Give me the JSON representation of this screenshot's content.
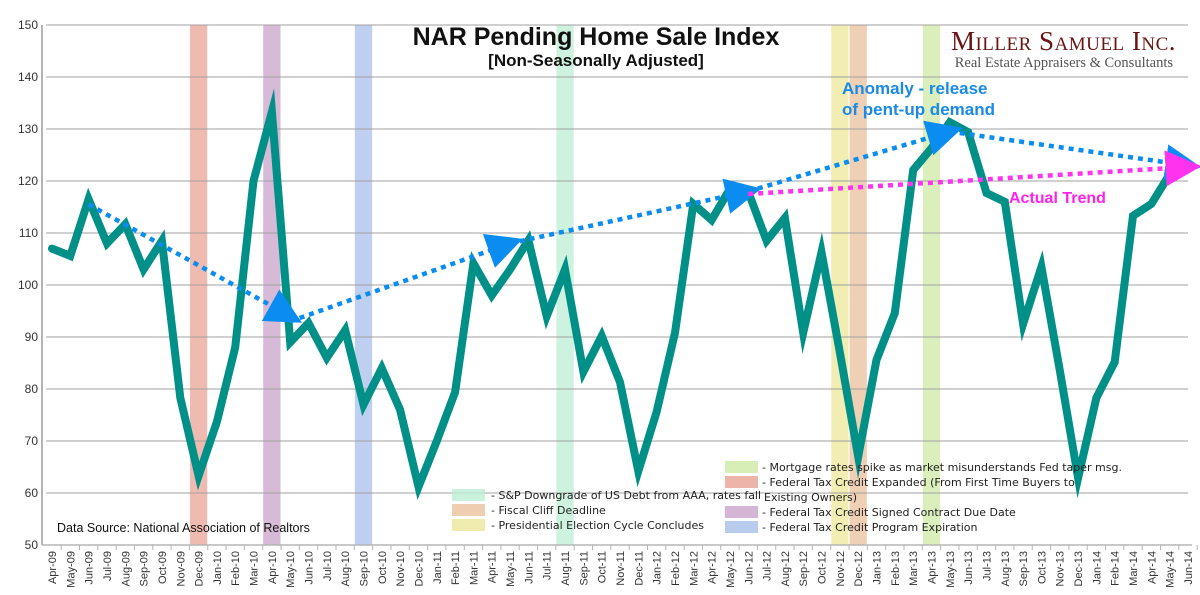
{
  "chart_data": {
    "type": "line",
    "title": "NAR Pending Home Sale Index",
    "subtitle": "[Non-Seasonally Adjusted]",
    "xlabel": "",
    "ylabel": "",
    "ylim": [
      50,
      150
    ],
    "yticks": [
      50,
      60,
      70,
      80,
      90,
      100,
      110,
      120,
      130,
      140,
      150
    ],
    "grid": true,
    "categories": [
      "Apr-09",
      "May-09",
      "Jun-09",
      "Jul-09",
      "Aug-09",
      "Sep-09",
      "Oct-09",
      "Nov-09",
      "Dec-09",
      "Jan-10",
      "Feb-10",
      "Mar-10",
      "Apr-10",
      "May-10",
      "Jun-10",
      "Jul-10",
      "Aug-10",
      "Sep-10",
      "Oct-10",
      "Nov-10",
      "Dec-10",
      "Jan-11",
      "Feb-11",
      "Mar-11",
      "Apr-11",
      "May-11",
      "Jun-11",
      "Jul-11",
      "Aug-11",
      "Sep-11",
      "Oct-11",
      "Nov-11",
      "Dec-11",
      "Jan-12",
      "Feb-12",
      "Mar-12",
      "Apr-12",
      "May-12",
      "Jun-12",
      "Jul-12",
      "Aug-12",
      "Sep-12",
      "Oct-12",
      "Nov-12",
      "Dec-12",
      "Jan-13",
      "Feb-13",
      "Mar-13",
      "Apr-13",
      "May-13",
      "Jun-13",
      "Jul-13",
      "Aug-13",
      "Sep-13",
      "Oct-13",
      "Nov-13",
      "Dec-13",
      "Jan-14",
      "Feb-14",
      "Mar-14",
      "Apr-14",
      "May-14",
      "Jun-14"
    ],
    "series": [
      {
        "name": "Pending Home Sale Index",
        "color": "#009088",
        "values": [
          107.0,
          105.6,
          116.5,
          108.0,
          111.7,
          103.0,
          108.5,
          78.3,
          63.3,
          73.7,
          88.0,
          120.0,
          133.3,
          89.0,
          92.7,
          86.0,
          91.3,
          77.0,
          84.0,
          76.0,
          61.2,
          70.0,
          79.4,
          104.2,
          98.0,
          103.0,
          108.6,
          94.0,
          103.0,
          83.3,
          90.2,
          81.3,
          64.2,
          75.6,
          90.8,
          115.6,
          112.5,
          118.5,
          117.9,
          108.5,
          112.9,
          90.8,
          106.3,
          87.0,
          67.0,
          85.6,
          94.6,
          122.1,
          126.3,
          131.3,
          129.4,
          117.7,
          116.0,
          92.5,
          103.5,
          83.7,
          62.9,
          78.3,
          85.2,
          113.3,
          115.6,
          121.3,
          122.7
        ]
      }
    ],
    "trend_lines": [
      {
        "name": "blue-trend-1",
        "color": "#0a8cf0",
        "from": {
          "x": "Jun-09",
          "y": 115.5
        },
        "to": {
          "x": "May-10",
          "y": 94.0
        },
        "arrow": true
      },
      {
        "name": "blue-trend-2",
        "color": "#0a8cf0",
        "from": {
          "x": "May-10",
          "y": 93.0
        },
        "to": {
          "x": "May-11",
          "y": 108.0
        },
        "arrow": true
      },
      {
        "name": "blue-trend-3",
        "color": "#0a8cf0",
        "from": {
          "x": "May-11",
          "y": 108.0
        },
        "to": {
          "x": "Jun-12",
          "y": 118.0
        },
        "arrow": true
      },
      {
        "name": "blue-trend-4",
        "color": "#0a8cf0",
        "from": {
          "x": "Jun-12",
          "y": 118.0
        },
        "to": {
          "x": "May-13",
          "y": 129.5
        },
        "arrow": true
      },
      {
        "name": "blue-trend-5",
        "color": "#0a8cf0",
        "from": {
          "x": "May-13",
          "y": 129.5
        },
        "to": {
          "x": "Jun-14",
          "y": 123.0
        },
        "arrow": true
      },
      {
        "name": "pink-actual-trend",
        "color": "#ff33ee",
        "from": {
          "x": "Jun-12",
          "y": 117.5
        },
        "to": {
          "x": "Jun-14",
          "y": 122.7
        },
        "arrow": true
      }
    ],
    "event_bands": [
      {
        "month": "Dec-09",
        "color": "#e9a395",
        "label": "- Federal Tax Credit Expanded (From First Time Buyers to",
        "label2": "Existing Owners)"
      },
      {
        "month": "Apr-10",
        "color": "#c9a3cb",
        "label": "- Federal Tax Credit Signed Contract Due Date"
      },
      {
        "month": "Sep-10",
        "color": "#a9bfe9",
        "label": "- Federal Tax Credit Program Expiration"
      },
      {
        "month": "Aug-11",
        "color": "#bdeed6",
        "label": "- S&P Downgrade of US Debt from AAA, rates fall"
      },
      {
        "month": "Nov-12",
        "color": "#ece79a",
        "label": "- Presidential Election Cycle Concludes"
      },
      {
        "month": "Dec-12",
        "color": "#ebc09c",
        "label": "- Fiscal Cliff Deadline"
      },
      {
        "month": "Apr-13",
        "color": "#cdeaa5",
        "label": "- Mortgage rates spike as market misunderstands Fed taper msg."
      }
    ],
    "annotations": {
      "anomaly_line1": "Anomaly - release",
      "anomaly_line2": "of pent-up demand",
      "actual_trend": "Actual Trend"
    },
    "legend_placement": "bottom-center",
    "source": "Data Source: National Association of Realtors"
  },
  "brand": {
    "name": "Miller Samuel Inc.",
    "tagline": "Real Estate Appraisers & Consultants"
  }
}
